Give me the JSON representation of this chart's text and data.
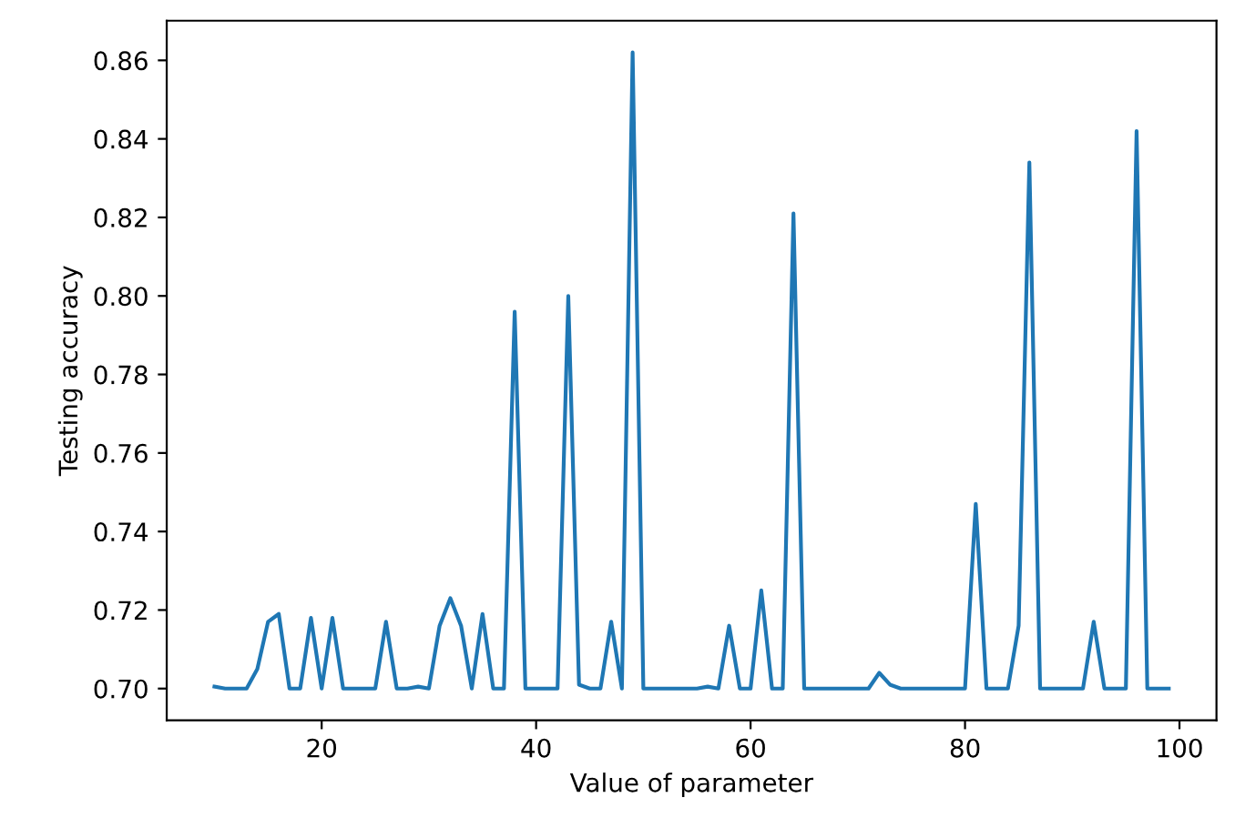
{
  "chart_data": {
    "type": "line",
    "xlabel": "Value of parameter",
    "ylabel": "Testing accuracy",
    "x": [
      10,
      11,
      12,
      13,
      14,
      15,
      16,
      17,
      18,
      19,
      20,
      21,
      22,
      23,
      24,
      25,
      26,
      27,
      28,
      29,
      30,
      31,
      32,
      33,
      34,
      35,
      36,
      37,
      38,
      39,
      40,
      41,
      42,
      43,
      44,
      45,
      46,
      47,
      48,
      49,
      50,
      51,
      52,
      53,
      54,
      55,
      56,
      57,
      58,
      59,
      60,
      61,
      62,
      63,
      64,
      65,
      66,
      67,
      68,
      69,
      70,
      71,
      72,
      73,
      74,
      75,
      76,
      77,
      78,
      79,
      80,
      81,
      82,
      83,
      84,
      85,
      86,
      87,
      88,
      89,
      90,
      91,
      92,
      93,
      94,
      95,
      96,
      97,
      98,
      99
    ],
    "series": [
      {
        "color": "#1f77b4",
        "values": [
          0.7005,
          0.7,
          0.7,
          0.7,
          0.705,
          0.717,
          0.719,
          0.7,
          0.7,
          0.718,
          0.7,
          0.718,
          0.7,
          0.7,
          0.7,
          0.7,
          0.717,
          0.7,
          0.7,
          0.7005,
          0.7,
          0.716,
          0.723,
          0.716,
          0.7,
          0.719,
          0.7,
          0.7,
          0.796,
          0.7,
          0.7,
          0.7,
          0.7,
          0.8,
          0.701,
          0.7,
          0.7,
          0.717,
          0.7,
          0.862,
          0.7,
          0.7,
          0.7,
          0.7,
          0.7,
          0.7,
          0.7005,
          0.7,
          0.716,
          0.7,
          0.7,
          0.725,
          0.7,
          0.7,
          0.821,
          0.7,
          0.7,
          0.7,
          0.7,
          0.7,
          0.7,
          0.7,
          0.704,
          0.701,
          0.7,
          0.7,
          0.7,
          0.7,
          0.7,
          0.7,
          0.7,
          0.747,
          0.7,
          0.7,
          0.7,
          0.716,
          0.834,
          0.7,
          0.7,
          0.7,
          0.7,
          0.7,
          0.717,
          0.7,
          0.7,
          0.7,
          0.842,
          0.7,
          0.7,
          0.7
        ]
      }
    ],
    "xlim": [
      5.55,
      103.45
    ],
    "xticks": [
      20,
      40,
      60,
      80,
      100
    ],
    "ylim": [
      0.6919,
      0.8701
    ],
    "yticks": [
      {
        "value": 0.7,
        "label": "0.70"
      },
      {
        "value": 0.72,
        "label": "0.72"
      },
      {
        "value": 0.74,
        "label": "0.74"
      },
      {
        "value": 0.76,
        "label": "0.76"
      },
      {
        "value": 0.78,
        "label": "0.78"
      },
      {
        "value": 0.8,
        "label": "0.80"
      },
      {
        "value": 0.82,
        "label": "0.82"
      },
      {
        "value": 0.84,
        "label": "0.84"
      },
      {
        "value": 0.86,
        "label": "0.86"
      }
    ],
    "grid": false,
    "marker": "none",
    "line_style": "solid"
  }
}
